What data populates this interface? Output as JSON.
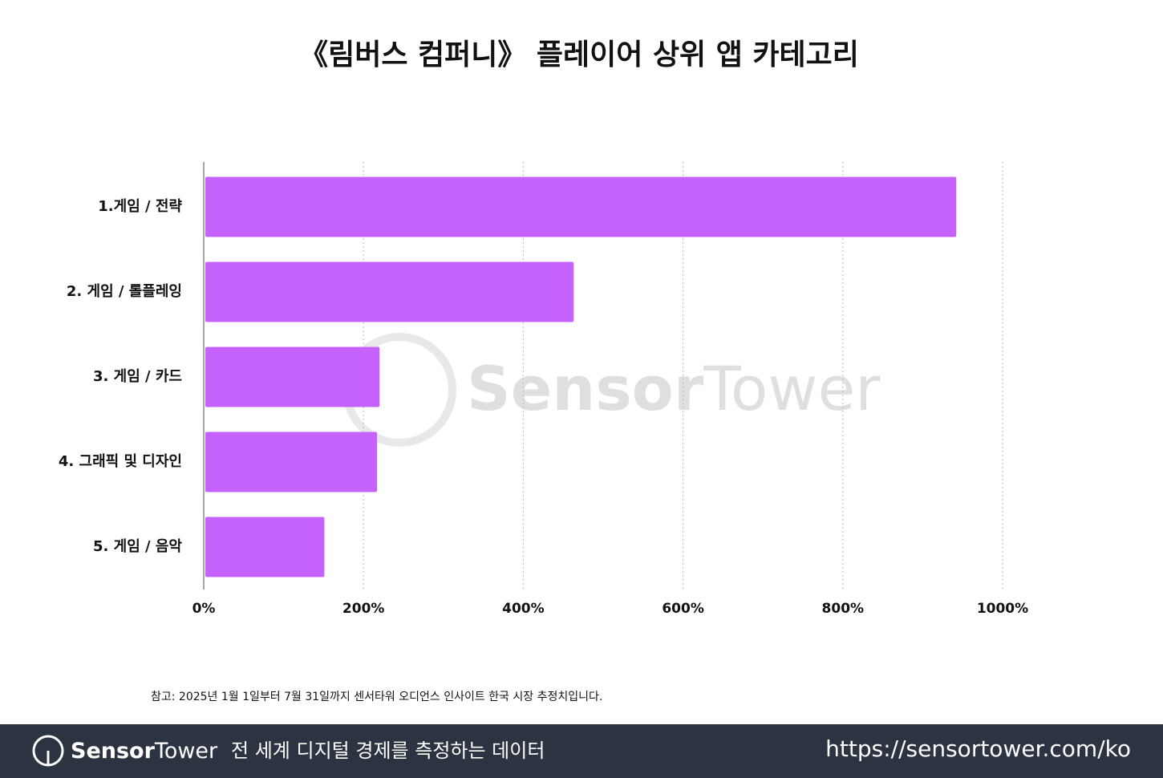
{
  "chart_data": {
    "type": "bar",
    "orientation": "horizontal",
    "title": "《림버스 컴퍼니》 플레이어 상위 앱 카테고리",
    "categories": [
      "1.게임 / 전략",
      "2. 게임 / 롤플레잉",
      "3. 게임 / 카드",
      "4. 그래픽 및 디자인",
      "5. 게임 / 음악"
    ],
    "values": [
      940,
      461,
      218,
      215,
      149
    ],
    "color": "#c462fb",
    "xlim": [
      0,
      1000
    ],
    "xticks": [
      {
        "value": 0,
        "label": "0%"
      },
      {
        "value": 200,
        "label": "200%"
      },
      {
        "value": 400,
        "label": "400%"
      },
      {
        "value": 600,
        "label": "600%"
      },
      {
        "value": 800,
        "label": "800%"
      },
      {
        "value": 1000,
        "label": "1000%"
      }
    ],
    "grid": true,
    "note": "참고: 2025년 1월 1일부터 7월 31일까지 센서타워 오디언스 인사이트 한국 시장  추정치입니다."
  },
  "footer": {
    "brand_bold": "Sensor",
    "brand_light": "Tower",
    "tagline": "전 세계 디지털 경제를 측정하는 데이터",
    "url": "https://sensortower.com/ko"
  }
}
